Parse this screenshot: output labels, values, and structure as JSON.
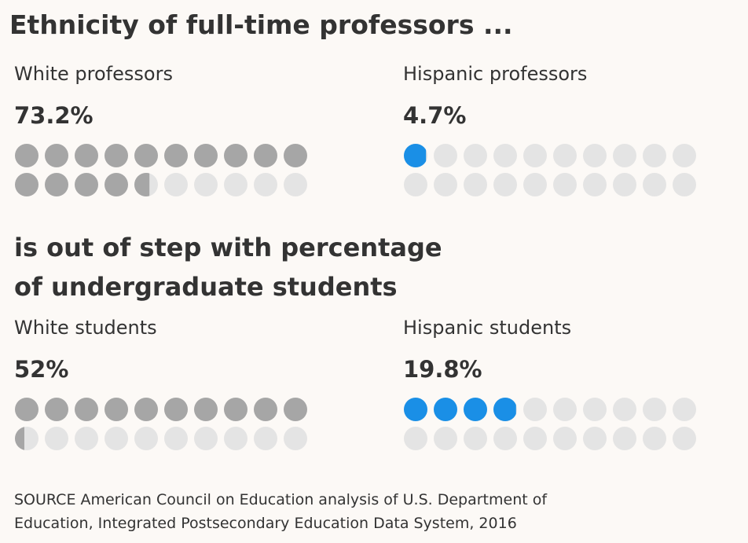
{
  "title": "Ethnicity of full-time professors  ...",
  "subtitle_lines": [
    "is out of step with percentage",
    "of undergraduate students"
  ],
  "source_lines": [
    "SOURCE American Council on Education analysis of U.S. Department of",
    "Education, Integrated Postsecondary Education Data System, 2016"
  ],
  "colors": {
    "white_fill": "#a6a6a6",
    "hispanic_fill": "#1a8fe6",
    "empty": "#e4e4e4",
    "background": "#fcf9f6"
  },
  "chart_data": [
    {
      "type": "pictogram",
      "group": "professors",
      "label": "White professors",
      "value_label": "73.2%",
      "value": 73.2,
      "color_key": "white_fill",
      "dots": 20,
      "units_per_dot": 5
    },
    {
      "type": "pictogram",
      "group": "professors",
      "label": "Hispanic professors",
      "value_label": "4.7%",
      "value": 4.7,
      "color_key": "hispanic_fill",
      "dots": 20,
      "units_per_dot": 5
    },
    {
      "type": "pictogram",
      "group": "students",
      "label": "White students",
      "value_label": "52%",
      "value": 52,
      "color_key": "white_fill",
      "dots": 20,
      "units_per_dot": 5
    },
    {
      "type": "pictogram",
      "group": "students",
      "label": "Hispanic students",
      "value_label": "19.8%",
      "value": 19.8,
      "color_key": "hispanic_fill",
      "dots": 20,
      "units_per_dot": 5
    }
  ]
}
